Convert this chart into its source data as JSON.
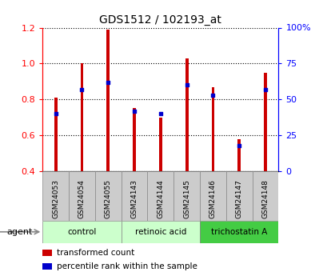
{
  "title": "GDS1512 / 102193_at",
  "categories": [
    "GSM24053",
    "GSM24054",
    "GSM24055",
    "GSM24143",
    "GSM24144",
    "GSM24145",
    "GSM24146",
    "GSM24147",
    "GSM24148"
  ],
  "red_values": [
    0.81,
    1.0,
    1.19,
    0.75,
    0.7,
    1.03,
    0.87,
    0.58,
    0.95
  ],
  "blue_percentiles": [
    0.4,
    0.57,
    0.62,
    0.42,
    0.4,
    0.6,
    0.53,
    0.18,
    0.57
  ],
  "ylim": [
    0.4,
    1.2
  ],
  "yticks": [
    0.4,
    0.6,
    0.8,
    1.0,
    1.2
  ],
  "right_yticks": [
    0,
    25,
    50,
    75,
    100
  ],
  "right_ytick_labels": [
    "0",
    "25",
    "50",
    "75",
    "100%"
  ],
  "bar_color": "#cc0000",
  "dot_color": "#0000cc",
  "bar_width": 0.12,
  "groups": [
    {
      "label": "control",
      "indices": [
        0,
        1,
        2
      ],
      "color": "#ccffcc"
    },
    {
      "label": "retinoic acid",
      "indices": [
        3,
        4,
        5
      ],
      "color": "#ccffcc"
    },
    {
      "label": "trichostatin A",
      "indices": [
        6,
        7,
        8
      ],
      "color": "#44cc44"
    }
  ],
  "sample_box_color": "#cccccc",
  "agent_label": "agent",
  "legend_items": [
    {
      "label": "transformed count",
      "color": "#cc0000"
    },
    {
      "label": "percentile rank within the sample",
      "color": "#0000cc"
    }
  ]
}
